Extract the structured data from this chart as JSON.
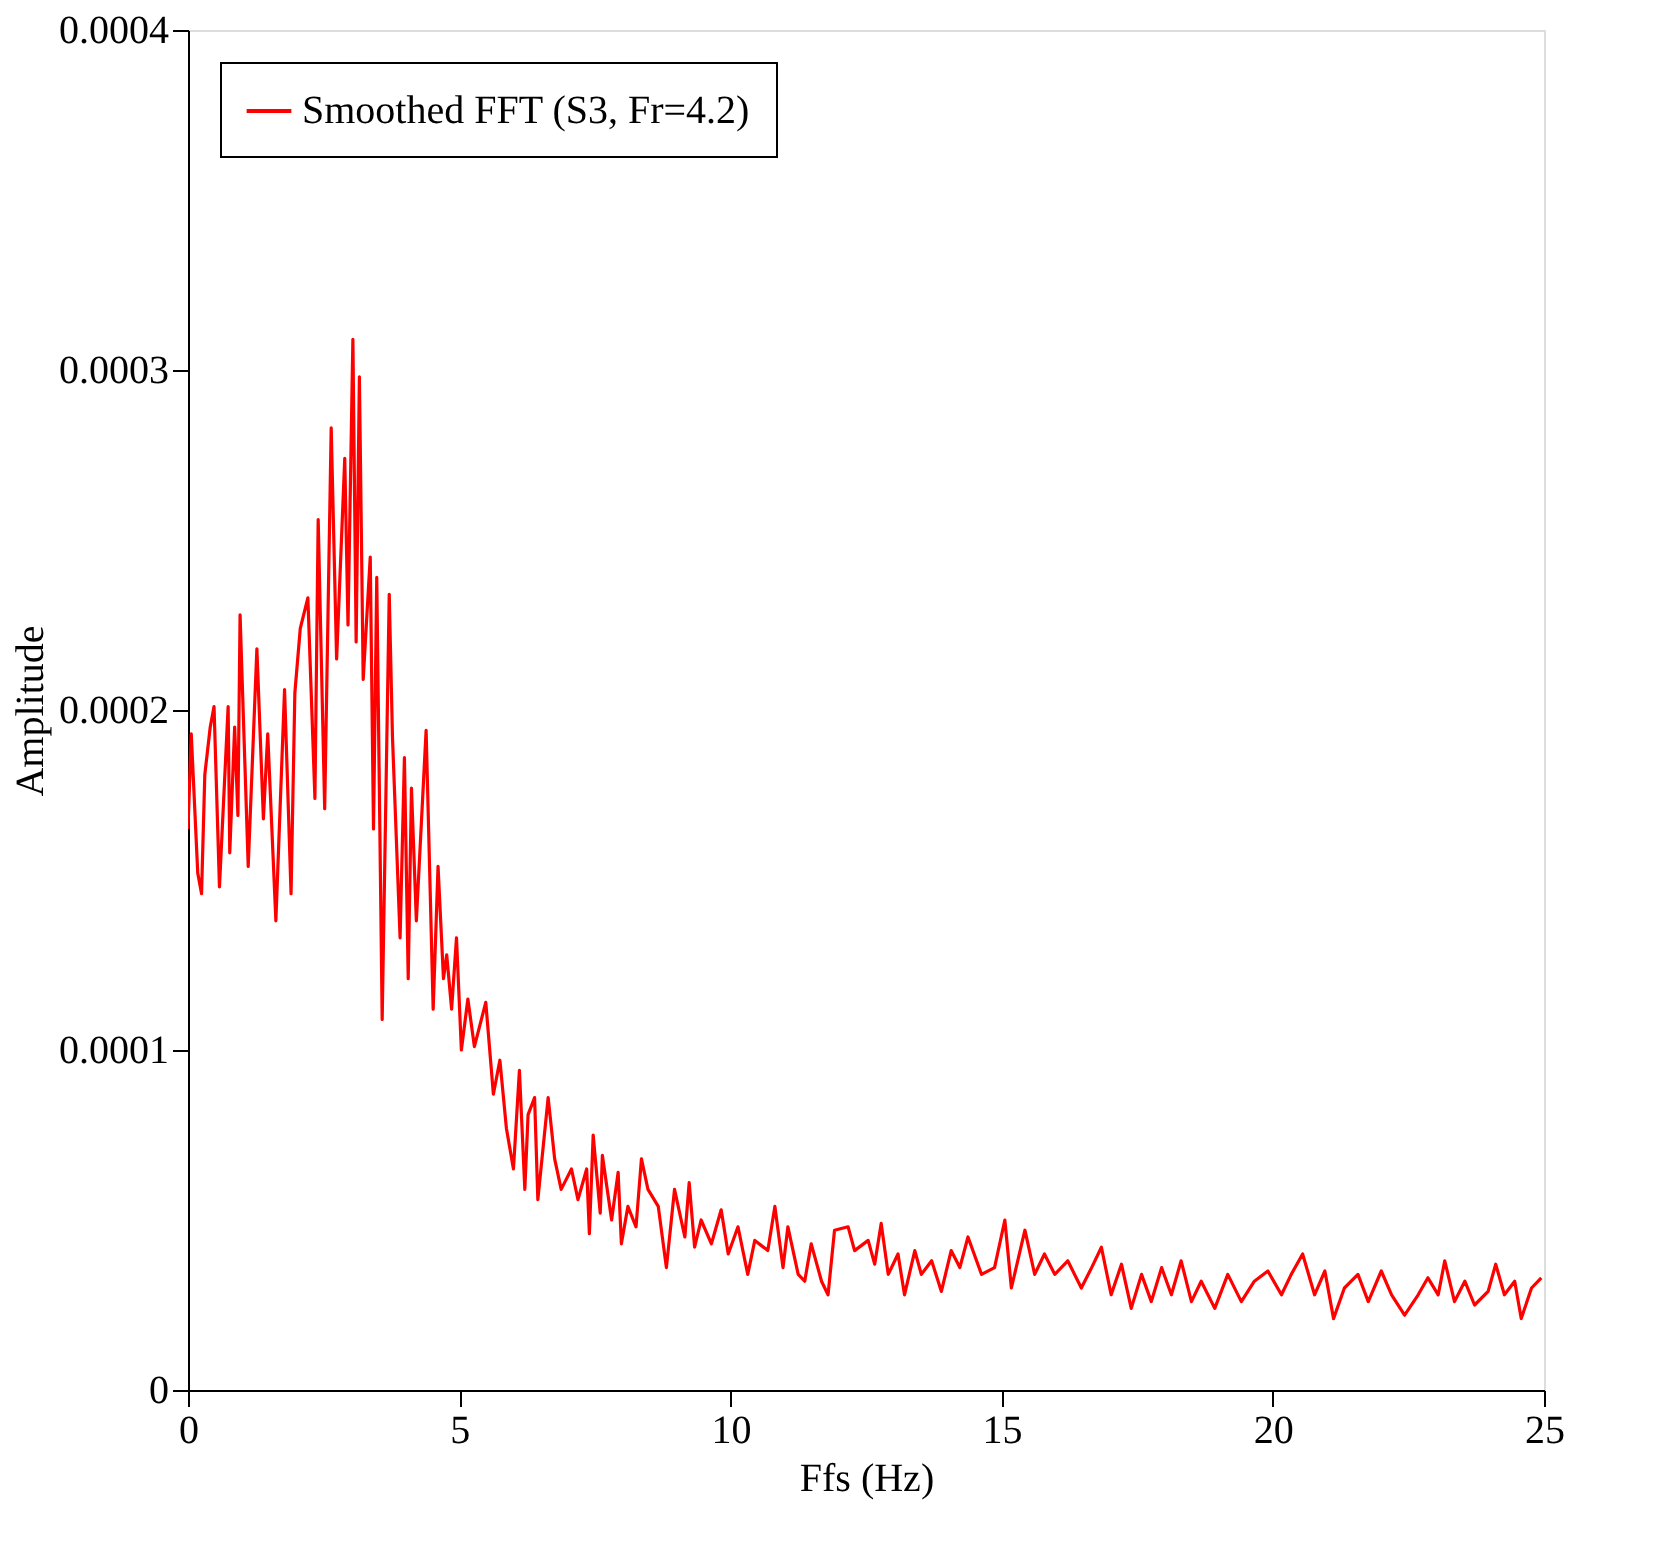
{
  "chart_data": {
    "type": "line",
    "xlabel": "Ffs (Hz)",
    "ylabel": "Amplitude",
    "xlim": [
      0,
      25
    ],
    "xticks": [
      0,
      5,
      10,
      15,
      20,
      25
    ],
    "ylim": [
      0,
      0.0004
    ],
    "yticks": [
      0,
      0.0001,
      0.0002,
      0.0003,
      0.0004
    ],
    "grid": false,
    "legend": "top left",
    "marker": "none",
    "line_style": "solid",
    "series": [
      {
        "name": "Smoothed FFT (S3, Fr=4.2)",
        "color": "#ff0000",
        "x": [
          0,
          0.06,
          0.18,
          0.25,
          0.31,
          0.41,
          0.48,
          0.58,
          0.74,
          0.77,
          0.86,
          0.92,
          0.96,
          1.11,
          1.27,
          1.39,
          1.47,
          1.62,
          1.78,
          1.9,
          1.97,
          2.07,
          2.21,
          2.34,
          2.4,
          2.52,
          2.64,
          2.74,
          2.89,
          2.95,
          3.04,
          3.1,
          3.16,
          3.23,
          3.36,
          3.42,
          3.48,
          3.58,
          3.71,
          3.77,
          3.91,
          3.99,
          4.06,
          4.12,
          4.21,
          4.39,
          4.52,
          4.61,
          4.71,
          4.77,
          4.86,
          4.95,
          5.04,
          5.16,
          5.28,
          5.49,
          5.63,
          5.75,
          5.87,
          6.0,
          6.11,
          6.21,
          6.27,
          6.39,
          6.45,
          6.64,
          6.76,
          6.88,
          7.07,
          7.19,
          7.35,
          7.4,
          7.47,
          7.6,
          7.64,
          7.81,
          7.93,
          7.99,
          8.11,
          8.26,
          8.36,
          8.48,
          8.67,
          8.82,
          8.97,
          9.16,
          9.24,
          9.34,
          9.46,
          9.65,
          9.83,
          9.96,
          10.14,
          10.32,
          10.45,
          10.69,
          10.82,
          10.97,
          11.06,
          11.25,
          11.37,
          11.49,
          11.68,
          11.8,
          11.92,
          12.17,
          12.29,
          12.54,
          12.66,
          12.78,
          12.91,
          13.09,
          13.21,
          13.4,
          13.52,
          13.71,
          13.89,
          14.07,
          14.23,
          14.38,
          14.63,
          14.87,
          15.06,
          15.18,
          15.43,
          15.61,
          15.79,
          15.98,
          16.22,
          16.47,
          16.66,
          16.84,
          17.02,
          17.21,
          17.39,
          17.58,
          17.76,
          17.95,
          18.13,
          18.31,
          18.5,
          18.68,
          18.93,
          19.17,
          19.42,
          19.66,
          19.91,
          20.16,
          20.34,
          20.55,
          20.77,
          20.96,
          21.12,
          21.32,
          21.57,
          21.76,
          22.0,
          22.19,
          22.43,
          22.68,
          22.86,
          23.05,
          23.17,
          23.35,
          23.54,
          23.72,
          23.97,
          24.11,
          24.27,
          24.46,
          24.58,
          24.77,
          24.95
        ],
        "values": [
          0.000165,
          0.000193,
          0.000152,
          0.000146,
          0.000181,
          0.000195,
          0.000201,
          0.000148,
          0.000201,
          0.000158,
          0.000195,
          0.000169,
          0.000228,
          0.000154,
          0.000218,
          0.000168,
          0.000193,
          0.000138,
          0.000206,
          0.000146,
          0.000205,
          0.000224,
          0.000233,
          0.000174,
          0.000256,
          0.000171,
          0.000283,
          0.000215,
          0.000274,
          0.000225,
          0.000309,
          0.00022,
          0.000298,
          0.000209,
          0.000245,
          0.000165,
          0.000239,
          0.000109,
          0.000234,
          0.000192,
          0.000133,
          0.000186,
          0.000121,
          0.000177,
          0.000138,
          0.000194,
          0.000112,
          0.000154,
          0.000121,
          0.000128,
          0.000112,
          0.000133,
          0.0001,
          0.000115,
          0.000101,
          0.000114,
          8.7e-05,
          9.7e-05,
          7.7e-05,
          6.5e-05,
          9.4e-05,
          5.9e-05,
          8.1e-05,
          8.6e-05,
          5.6e-05,
          8.6e-05,
          6.8e-05,
          5.9e-05,
          6.5e-05,
          5.6e-05,
          6.5e-05,
          4.6e-05,
          7.5e-05,
          5.2e-05,
          6.9e-05,
          5e-05,
          6.4e-05,
          4.3e-05,
          5.4e-05,
          4.8e-05,
          6.8e-05,
          5.9e-05,
          5.4e-05,
          3.6e-05,
          5.9e-05,
          4.5e-05,
          6.1e-05,
          4.2e-05,
          5e-05,
          4.3e-05,
          5.3e-05,
          4e-05,
          4.8e-05,
          3.4e-05,
          4.4e-05,
          4.1e-05,
          5.4e-05,
          3.6e-05,
          4.8e-05,
          3.4e-05,
          3.2e-05,
          4.3e-05,
          3.2e-05,
          2.8e-05,
          4.7e-05,
          4.8e-05,
          4.1e-05,
          4.4e-05,
          3.7e-05,
          4.9e-05,
          3.4e-05,
          4e-05,
          2.8e-05,
          4.1e-05,
          3.4e-05,
          3.8e-05,
          2.9e-05,
          4.1e-05,
          3.6e-05,
          4.5e-05,
          3.4e-05,
          3.6e-05,
          5e-05,
          3e-05,
          4.7e-05,
          3.4e-05,
          4e-05,
          3.4e-05,
          3.8e-05,
          3e-05,
          3.6e-05,
          4.2e-05,
          2.8e-05,
          3.7e-05,
          2.4e-05,
          3.4e-05,
          2.6e-05,
          3.6e-05,
          2.8e-05,
          3.8e-05,
          2.6e-05,
          3.2e-05,
          2.4e-05,
          3.4e-05,
          2.6e-05,
          3.2e-05,
          3.5e-05,
          2.8e-05,
          3.4e-05,
          4e-05,
          2.8e-05,
          3.5e-05,
          2.1e-05,
          3e-05,
          3.4e-05,
          2.6e-05,
          3.5e-05,
          2.8e-05,
          2.2e-05,
          2.8e-05,
          3.3e-05,
          2.8e-05,
          3.8e-05,
          2.6e-05,
          3.2e-05,
          2.5e-05,
          2.9e-05,
          3.7e-05,
          2.8e-05,
          3.2e-05,
          2.1e-05,
          3e-05,
          3.3e-05
        ]
      }
    ]
  }
}
